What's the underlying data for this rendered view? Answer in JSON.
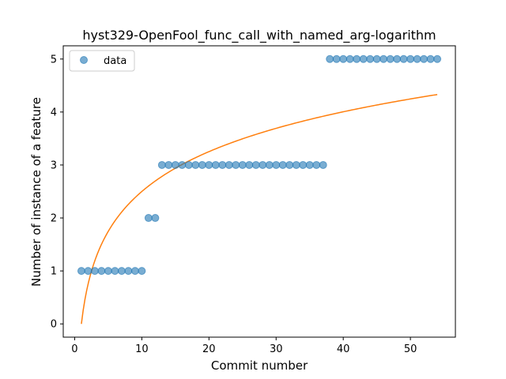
{
  "chart_data": {
    "type": "scatter",
    "title": "hyst329-OpenFool_func_call_with_named_arg-logarithm",
    "xlabel": "Commit number",
    "ylabel": "Number of instance of a feature",
    "xlim": [
      -1.7,
      56.7
    ],
    "ylim": [
      -0.25,
      5.25
    ],
    "xticks": [
      0,
      10,
      20,
      30,
      40,
      50
    ],
    "yticks": [
      0,
      1,
      2,
      3,
      4,
      5
    ],
    "grid": false,
    "legend_position": "top-left",
    "series": [
      {
        "name": "data",
        "kind": "scatter",
        "color": "#1f77b4",
        "x": [
          1,
          2,
          3,
          4,
          5,
          6,
          7,
          8,
          9,
          10,
          11,
          12,
          13,
          14,
          15,
          16,
          17,
          18,
          19,
          20,
          21,
          22,
          23,
          24,
          25,
          26,
          27,
          28,
          29,
          30,
          31,
          32,
          33,
          34,
          35,
          36,
          37,
          38,
          39,
          40,
          41,
          42,
          43,
          44,
          45,
          46,
          47,
          48,
          49,
          50,
          51,
          52,
          53,
          54
        ],
        "y": [
          1,
          1,
          1,
          1,
          1,
          1,
          1,
          1,
          1,
          1,
          2,
          2,
          3,
          3,
          3,
          3,
          3,
          3,
          3,
          3,
          3,
          3,
          3,
          3,
          3,
          3,
          3,
          3,
          3,
          3,
          3,
          3,
          3,
          3,
          3,
          3,
          3,
          5,
          5,
          5,
          5,
          5,
          5,
          5,
          5,
          5,
          5,
          5,
          5,
          5,
          5,
          5,
          5,
          5
        ]
      },
      {
        "kind": "line",
        "color": "#ff7f0e",
        "fit": "logarithmic",
        "x": [
          1,
          54
        ],
        "y": [
          0,
          4.33
        ]
      }
    ]
  }
}
